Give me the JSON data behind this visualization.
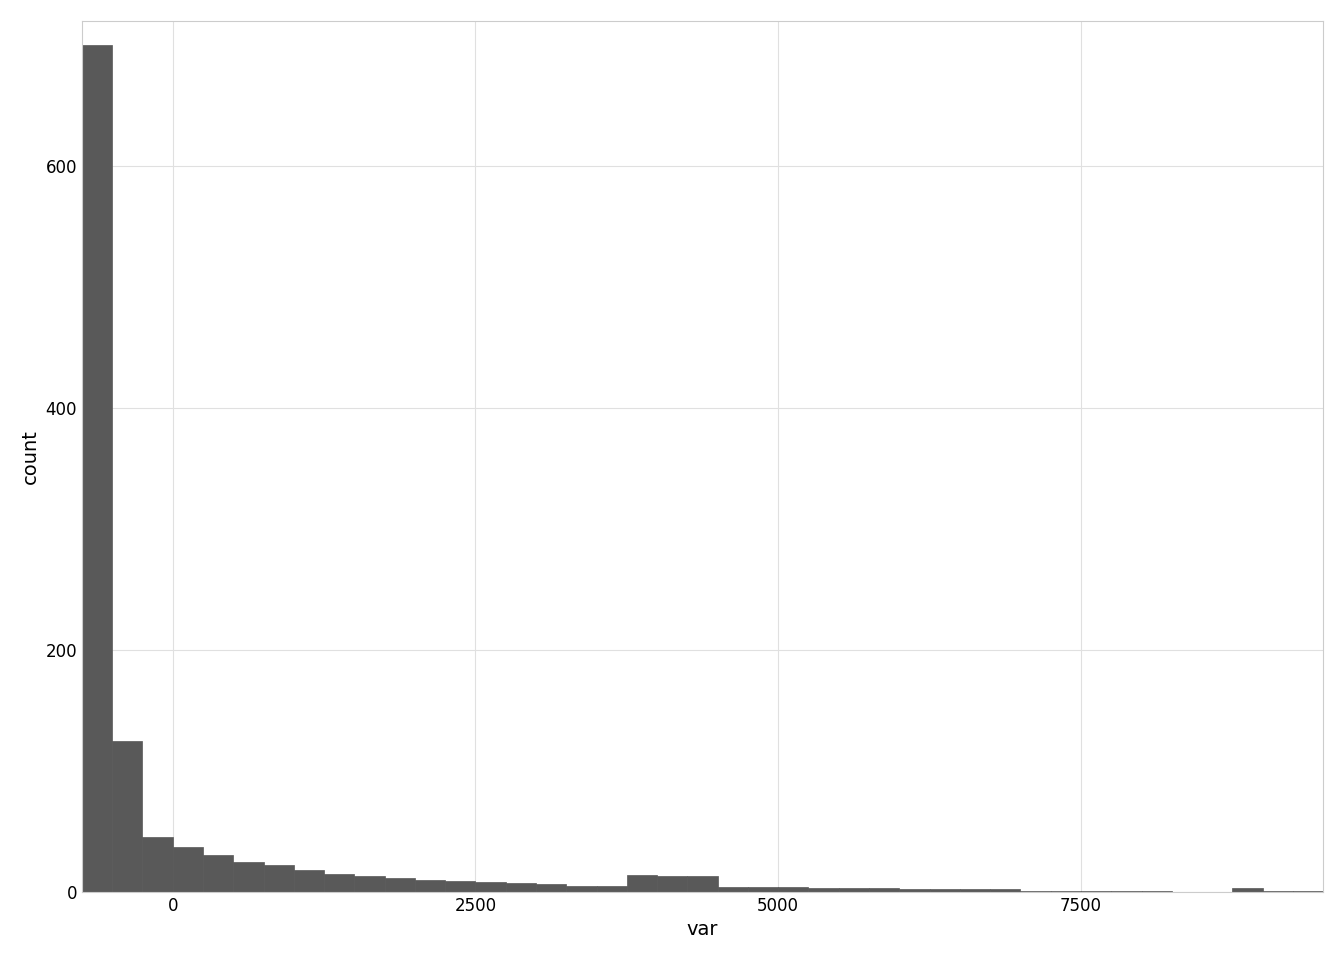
{
  "xlabel": "var",
  "ylabel": "count",
  "bar_color": "#595959",
  "bar_edge_color": "#595959",
  "background_color": "#ffffff",
  "panel_background": "#ffffff",
  "grid_color": "#e0e0e0",
  "xlim": [
    -750,
    9500
  ],
  "ylim": [
    0,
    720
  ],
  "yticks": [
    0,
    200,
    400,
    600
  ],
  "xticks": [
    0,
    2500,
    5000,
    7500
  ],
  "bin_edges": [
    -750,
    -500,
    -250,
    0,
    250,
    500,
    750,
    1000,
    1250,
    1500,
    1750,
    2000,
    2250,
    2500,
    2750,
    3000,
    3250,
    3500,
    3750,
    4000,
    4250,
    4500,
    4750,
    5000,
    5250,
    5500,
    5750,
    6000,
    6250,
    6500,
    6750,
    7000,
    7250,
    7500,
    7750,
    8000,
    8250,
    8500,
    8750,
    9000,
    9250,
    9500
  ],
  "bin_heights": [
    700,
    125,
    45,
    37,
    30,
    25,
    22,
    18,
    15,
    13,
    11,
    10,
    9,
    8,
    7,
    6,
    5,
    5,
    14,
    13,
    13,
    4,
    4,
    4,
    3,
    3,
    3,
    2,
    2,
    2,
    2,
    1,
    1,
    1,
    1,
    1,
    0,
    0,
    3,
    1,
    1
  ],
  "title_fontsize": 16,
  "axis_label_fontsize": 14,
  "tick_fontsize": 12
}
